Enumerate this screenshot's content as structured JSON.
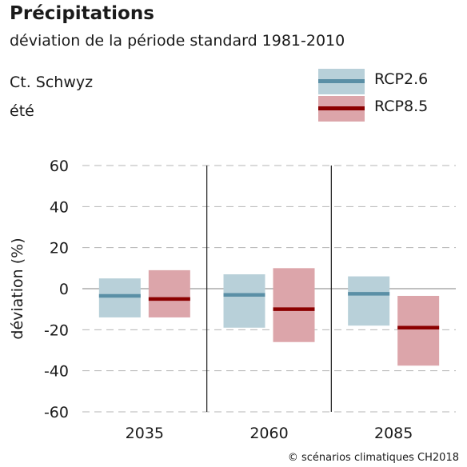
{
  "header": {
    "title": "Précipitations",
    "subtitle": "déviation de la période standard 1981-2010",
    "region": "Ct. Schwyz",
    "season": "été"
  },
  "legend": [
    {
      "label": "RCP2.6",
      "fill": "#b8d0d9",
      "line": "#5a8fa6"
    },
    {
      "label": "RCP8.5",
      "fill": "#dca5aa",
      "line": "#8b0000"
    }
  ],
  "footer": "© scénarios climatiques CH2018",
  "chart_data": {
    "type": "bar",
    "ylabel": "déviation (%)",
    "xlabel": "",
    "ylim": [
      -60,
      60
    ],
    "yticks": [
      60,
      40,
      20,
      0,
      -20,
      -40,
      -60
    ],
    "yticklabels": [
      "60",
      "40",
      "20",
      "0",
      "-20",
      "-40",
      "-60"
    ],
    "grid": "dashed horizontal",
    "categories": [
      "2035",
      "2060",
      "2085"
    ],
    "series": [
      {
        "name": "RCP2.6",
        "fill": "#b8d0d9",
        "line": "#5a8fa6",
        "low": [
          -14,
          -19,
          -18
        ],
        "median": [
          -3.5,
          -3,
          -2.5
        ],
        "high": [
          5,
          7,
          6
        ]
      },
      {
        "name": "RCP8.5",
        "fill": "#dca5aa",
        "line": "#8b0000",
        "low": [
          -14,
          -26,
          -37.5
        ],
        "median": [
          -5,
          -10,
          -19
        ],
        "high": [
          9,
          10,
          -3.5
        ]
      }
    ]
  }
}
